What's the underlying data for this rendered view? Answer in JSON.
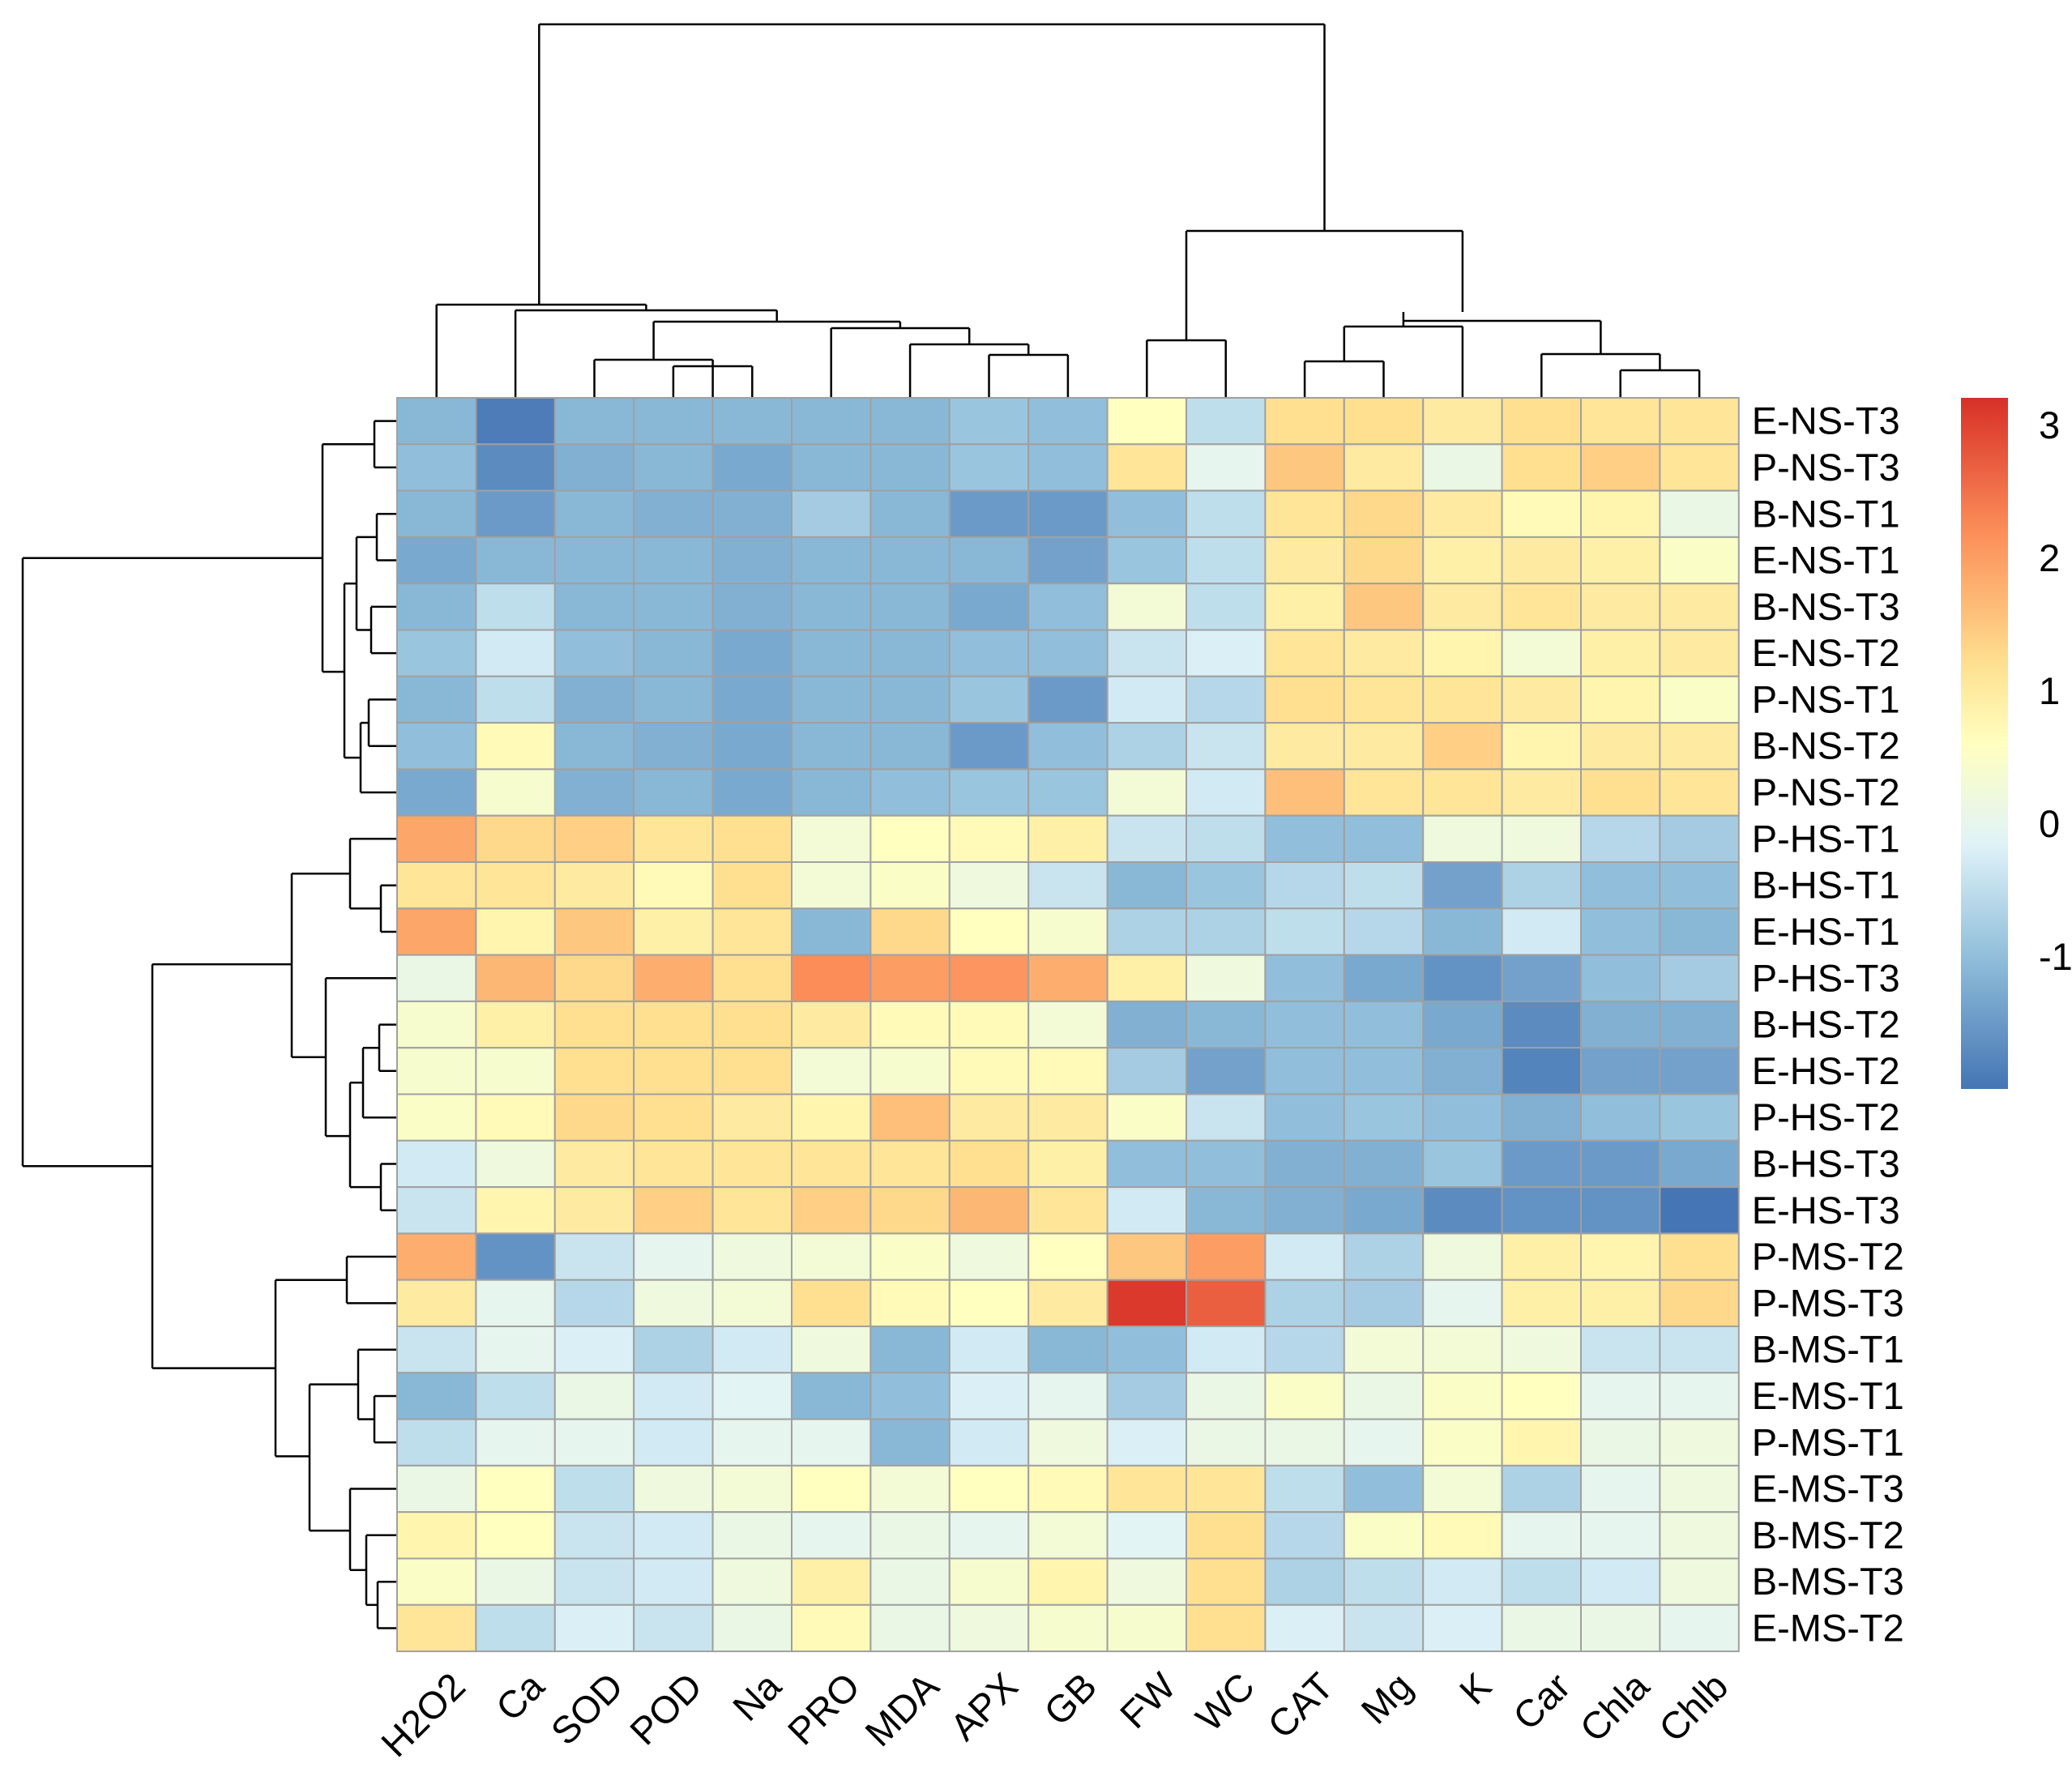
{
  "chart_data": {
    "type": "heatmap",
    "title": "",
    "columns": [
      "H2O2",
      "Ca",
      "SOD",
      "POD",
      "Na",
      "PRO",
      "MDA",
      "APX",
      "GB",
      "FW",
      "WC",
      "CAT",
      "Mg",
      "K",
      "Car",
      "Chla",
      "Chlb"
    ],
    "rows": [
      "E-NS-T3",
      "P-NS-T3",
      "B-NS-T1",
      "E-NS-T1",
      "B-NS-T3",
      "E-NS-T2",
      "P-NS-T1",
      "B-NS-T2",
      "P-NS-T2",
      "P-HS-T1",
      "B-HS-T1",
      "E-HS-T1",
      "P-HS-T3",
      "B-HS-T2",
      "E-HS-T2",
      "P-HS-T2",
      "B-HS-T3",
      "E-HS-T3",
      "P-MS-T2",
      "P-MS-T3",
      "B-MS-T1",
      "E-MS-T1",
      "P-MS-T1",
      "E-MS-T3",
      "B-MS-T2",
      "B-MS-T3",
      "E-MS-T2"
    ],
    "values": [
      [
        -1.1,
        -1.9,
        -1.1,
        -1.1,
        -1.1,
        -1.1,
        -1.1,
        -0.9,
        -1.0,
        0.6,
        -0.5,
        1.2,
        1.2,
        1.0,
        1.2,
        1.1,
        1.1
      ],
      [
        -1.0,
        -1.7,
        -1.2,
        -1.1,
        -1.3,
        -1.1,
        -1.1,
        -0.9,
        -1.0,
        1.1,
        0.0,
        1.5,
        1.0,
        0.1,
        1.2,
        1.4,
        1.1
      ],
      [
        -1.1,
        -1.5,
        -1.1,
        -1.2,
        -1.2,
        -0.8,
        -1.1,
        -1.5,
        -1.5,
        -1.0,
        -0.5,
        1.1,
        1.3,
        1.0,
        0.7,
        0.8,
        0.1
      ],
      [
        -1.3,
        -1.1,
        -1.1,
        -1.1,
        -1.2,
        -1.1,
        -1.1,
        -1.1,
        -1.4,
        -0.9,
        -0.5,
        1.0,
        1.3,
        0.9,
        1.0,
        0.9,
        0.5
      ],
      [
        -1.1,
        -0.5,
        -1.1,
        -1.1,
        -1.2,
        -1.1,
        -1.1,
        -1.3,
        -1.0,
        0.3,
        -0.5,
        0.9,
        1.5,
        1.0,
        1.1,
        1.0,
        1.0
      ],
      [
        -0.9,
        -0.3,
        -1.0,
        -1.1,
        -1.3,
        -1.1,
        -1.1,
        -1.0,
        -1.0,
        -0.4,
        -0.2,
        1.1,
        1.0,
        0.8,
        0.3,
        0.9,
        1.0
      ],
      [
        -1.1,
        -0.5,
        -1.2,
        -1.1,
        -1.3,
        -1.1,
        -1.1,
        -0.9,
        -1.5,
        -0.3,
        -0.6,
        1.2,
        1.1,
        1.1,
        1.0,
        0.8,
        0.5
      ],
      [
        -1.0,
        0.7,
        -1.1,
        -1.2,
        -1.3,
        -1.1,
        -1.1,
        -1.5,
        -1.0,
        -0.7,
        -0.4,
        1.0,
        1.0,
        1.4,
        0.8,
        1.0,
        1.0
      ],
      [
        -1.3,
        0.4,
        -1.2,
        -1.1,
        -1.3,
        -1.1,
        -1.0,
        -0.9,
        -0.9,
        0.3,
        -0.3,
        1.6,
        1.1,
        1.1,
        1.0,
        1.2,
        1.1
      ],
      [
        1.9,
        1.3,
        1.4,
        1.1,
        1.2,
        0.3,
        0.6,
        0.7,
        0.9,
        -0.4,
        -0.5,
        -1.0,
        -1.0,
        0.2,
        0.2,
        -0.6,
        -0.8
      ],
      [
        1.1,
        1.1,
        1.0,
        0.7,
        1.2,
        0.3,
        0.5,
        0.2,
        -0.4,
        -1.1,
        -0.9,
        -0.6,
        -0.5,
        -1.4,
        -0.7,
        -1.0,
        -1.0
      ],
      [
        1.9,
        0.8,
        1.5,
        0.9,
        1.1,
        -1.1,
        1.3,
        0.6,
        0.4,
        -0.7,
        -0.7,
        -0.5,
        -0.6,
        -1.1,
        -0.3,
        -1.0,
        -1.1
      ],
      [
        0.1,
        1.7,
        1.3,
        1.8,
        1.2,
        2.2,
        2.0,
        2.1,
        1.8,
        0.9,
        0.2,
        -1.0,
        -1.3,
        -1.6,
        -1.4,
        -1.0,
        -0.8
      ],
      [
        0.4,
        0.9,
        1.2,
        1.2,
        1.2,
        1.0,
        0.7,
        0.7,
        0.3,
        -1.2,
        -1.1,
        -1.0,
        -1.0,
        -1.3,
        -1.7,
        -1.2,
        -1.2
      ],
      [
        0.4,
        0.4,
        1.2,
        1.2,
        1.2,
        0.3,
        0.4,
        0.7,
        0.7,
        -0.8,
        -1.4,
        -1.0,
        -1.0,
        -1.2,
        -1.8,
        -1.4,
        -1.4
      ],
      [
        0.5,
        0.7,
        1.3,
        1.2,
        1.0,
        0.8,
        1.6,
        1.0,
        1.0,
        0.5,
        -0.4,
        -1.0,
        -0.9,
        -1.0,
        -1.2,
        -1.0,
        -0.9
      ],
      [
        -0.3,
        0.2,
        1.0,
        1.1,
        1.1,
        1.1,
        1.1,
        1.2,
        0.9,
        -1.0,
        -1.0,
        -1.2,
        -1.2,
        -0.9,
        -1.5,
        -1.5,
        -1.3
      ],
      [
        -0.4,
        0.8,
        1.0,
        1.4,
        1.1,
        1.4,
        1.3,
        1.7,
        1.1,
        -0.3,
        -1.1,
        -1.2,
        -1.3,
        -1.7,
        -1.6,
        -1.6,
        -2.0
      ],
      [
        1.8,
        -1.6,
        -0.4,
        0.0,
        0.2,
        0.3,
        0.5,
        0.2,
        0.6,
        1.5,
        2.0,
        -0.3,
        -0.7,
        0.2,
        0.9,
        0.8,
        1.2
      ],
      [
        1.0,
        0.0,
        -0.6,
        0.2,
        0.3,
        1.2,
        0.7,
        0.6,
        1.0,
        3.1,
        2.7,
        -0.7,
        -0.8,
        0.0,
        0.9,
        0.9,
        1.3
      ],
      [
        -0.4,
        0.0,
        -0.2,
        -0.7,
        -0.3,
        0.2,
        -1.1,
        -0.3,
        -1.1,
        -1.0,
        -0.3,
        -0.6,
        0.3,
        0.3,
        0.2,
        -0.4,
        -0.4
      ],
      [
        -1.1,
        -0.5,
        0.1,
        -0.3,
        -0.1,
        -1.1,
        -1.0,
        -0.2,
        0.0,
        -0.8,
        0.1,
        0.5,
        0.1,
        0.5,
        0.6,
        0.0,
        0.0
      ],
      [
        -0.5,
        0.0,
        0.0,
        -0.3,
        0.0,
        0.0,
        -1.1,
        -0.3,
        0.2,
        -0.2,
        0.1,
        0.1,
        0.0,
        0.5,
        0.8,
        0.1,
        0.2
      ],
      [
        0.1,
        0.6,
        -0.5,
        0.2,
        0.3,
        0.6,
        0.3,
        0.6,
        0.7,
        1.1,
        1.1,
        -0.5,
        -1.0,
        0.3,
        -0.7,
        0.0,
        0.2
      ],
      [
        0.8,
        0.6,
        -0.4,
        -0.3,
        0.1,
        0.0,
        0.1,
        0.0,
        0.3,
        -0.1,
        1.2,
        -0.6,
        0.5,
        0.7,
        0.0,
        0.0,
        0.2
      ],
      [
        0.5,
        0.1,
        -0.4,
        -0.3,
        0.2,
        0.9,
        0.1,
        0.4,
        0.8,
        0.2,
        1.2,
        -0.7,
        -0.5,
        -0.3,
        -0.5,
        -0.3,
        0.2
      ],
      [
        1.1,
        -0.5,
        -0.2,
        -0.4,
        0.1,
        0.7,
        0.1,
        0.2,
        0.4,
        0.4,
        1.2,
        -0.2,
        -0.4,
        -0.2,
        0.1,
        0.1,
        0.0
      ]
    ],
    "color_scale": {
      "min": -2.0,
      "max": 3.2,
      "stops": [
        "#4575B4",
        "#91BFDB",
        "#E0F3F8",
        "#FFFFBF",
        "#FEE090",
        "#FC8D59",
        "#D73027"
      ],
      "stop_values": [
        -2.0,
        -1.0,
        -0.15,
        0.6,
        1.2,
        2.2,
        3.2
      ]
    },
    "legend": {
      "ticks": [
        3,
        2,
        1,
        0,
        -1
      ],
      "tick_labels": [
        "3",
        "2",
        "1",
        "0",
        "-1"
      ]
    },
    "cell_border_color": "#A0A0A0",
    "dendrogram_color": "#000000"
  }
}
